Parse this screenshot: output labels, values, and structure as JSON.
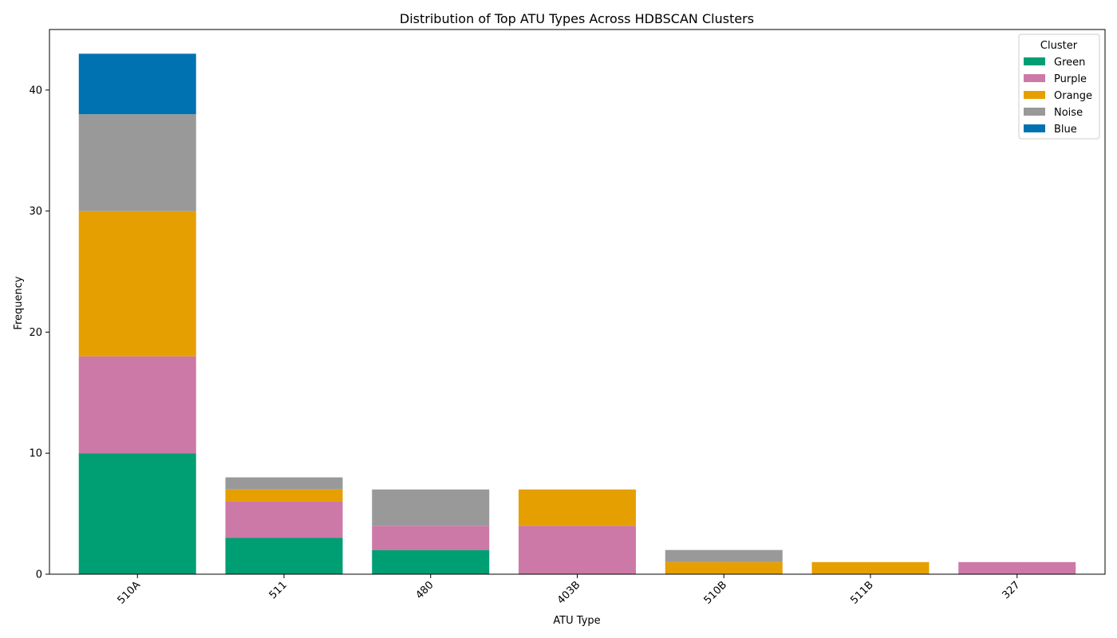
{
  "chart_data": {
    "type": "bar",
    "stacked": true,
    "title": "Distribution of Top ATU Types Across HDBSCAN Clusters",
    "xlabel": "ATU Type",
    "ylabel": "Frequency",
    "categories": [
      "510A",
      "511",
      "480",
      "403B",
      "510B",
      "511B",
      "327"
    ],
    "ylim": [
      0,
      45
    ],
    "yticks": [
      0,
      10,
      20,
      30,
      40
    ],
    "grid": false,
    "legend": {
      "title": "Cluster",
      "placement": "top-right"
    },
    "series": [
      {
        "name": "Green",
        "color": "#009e73",
        "values": [
          10,
          3,
          2,
          0,
          0,
          0,
          0
        ]
      },
      {
        "name": "Purple",
        "color": "#cc79a7",
        "values": [
          8,
          3,
          2,
          4,
          0,
          0,
          1
        ]
      },
      {
        "name": "Orange",
        "color": "#e69f00",
        "values": [
          12,
          1,
          0,
          3,
          1,
          1,
          0
        ]
      },
      {
        "name": "Noise",
        "color": "#999999",
        "values": [
          8,
          1,
          3,
          0,
          1,
          0,
          0
        ]
      },
      {
        "name": "Blue",
        "color": "#0072b2",
        "values": [
          5,
          0,
          0,
          0,
          0,
          0,
          0
        ]
      }
    ]
  }
}
